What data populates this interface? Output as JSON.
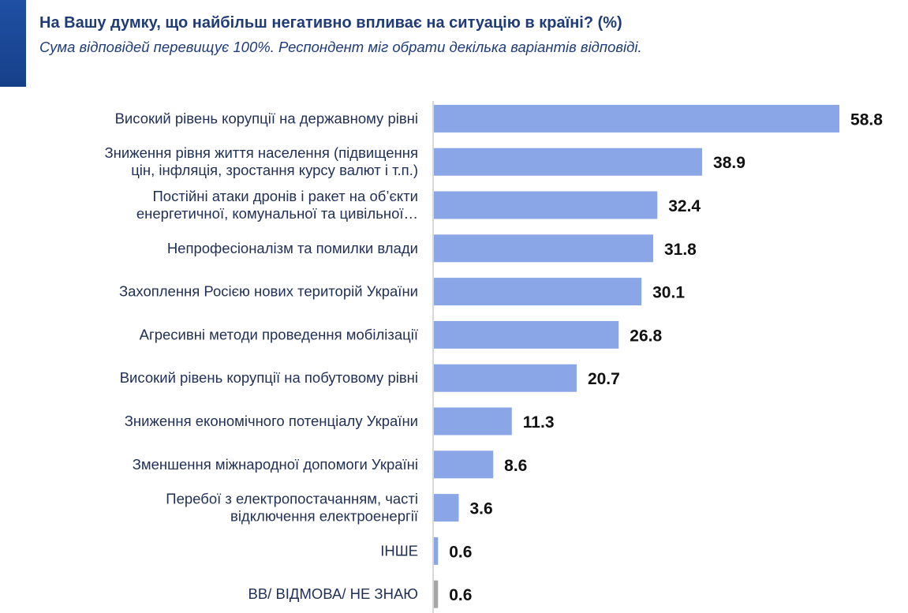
{
  "header": {
    "title": "На Вашу думку, що найбільш негативно впливає на ситуацію в країні? (%)",
    "subtitle": "Сума відповідей перевищує 100%. Респондент міг обрати декілька варіантів відповіді."
  },
  "colors": {
    "accent": "#1f4fa3",
    "bar": "#8aa6e6",
    "bar_no_answer": "#a6a6a6",
    "axis": "#bfbfbf"
  },
  "chart_data": {
    "type": "bar",
    "orientation": "horizontal",
    "title": "На Вашу думку, що найбільш негативно впливає на ситуацію в країні? (%)",
    "subtitle": "Сума відповідей перевищує 100%. Респондент міг обрати декілька варіантів відповіді.",
    "xlim": [
      0,
      62
    ],
    "grid": false,
    "legend": "none",
    "categories": [
      [
        "Високий рівень корупції на державному рівні"
      ],
      [
        "Зниження рівня життя населення (підвищення",
        "цін, інфляція, зростання курсу валют і т.п.)"
      ],
      [
        "Постійні атаки дронів і ракет на об’єкти",
        "енергетичної, комунальної та цивільної…"
      ],
      [
        "Непрофесіоналізм та помилки влади"
      ],
      [
        "Захоплення Росією нових територій України"
      ],
      [
        "Агресивні методи проведення мобілізації"
      ],
      [
        "Високий рівень корупції на побутовому рівні"
      ],
      [
        "Зниження економічного потенціалу України"
      ],
      [
        "Зменшення міжнародної допомоги Україні"
      ],
      [
        "Перебої з електропостачанням, часті",
        "відключення електроенергії"
      ],
      [
        "ІНШЕ"
      ],
      [
        "ВВ/ ВІДМОВА/ НЕ ЗНАЮ"
      ]
    ],
    "values": [
      58.8,
      38.9,
      32.4,
      31.8,
      30.1,
      26.8,
      20.7,
      11.3,
      8.6,
      3.6,
      0.6,
      0.6
    ],
    "value_labels": [
      "58.8",
      "38.9",
      "32.4",
      "31.8",
      "30.1",
      "26.8",
      "20.7",
      "11.3",
      "8.6",
      "3.6",
      "0.6",
      "0.6"
    ]
  }
}
